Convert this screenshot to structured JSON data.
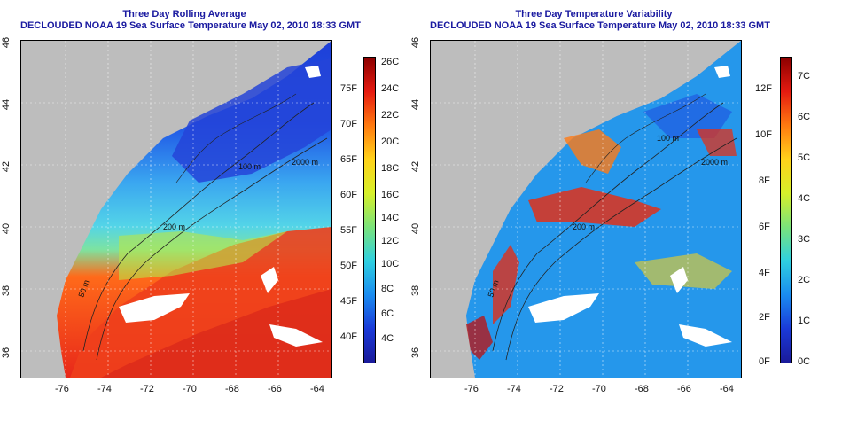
{
  "left_panel": {
    "title_line1": "Three Day Rolling Average",
    "title_line2": "DECLOUDED NOAA 19 Sea Surface Temperature May 02, 2010 18:33 GMT",
    "lon_ticks": [
      "-76",
      "-74",
      "-72",
      "-70",
      "-68",
      "-66",
      "-64"
    ],
    "lat_ticks": [
      "36",
      "38",
      "40",
      "42",
      "44",
      "46"
    ],
    "contours": [
      "2000 m",
      "200 m",
      "100 m",
      "50 m",
      "200 m",
      "200 m"
    ],
    "colorbar": {
      "celsius": [
        "26C",
        "24C",
        "22C",
        "20C",
        "18C",
        "16C",
        "14C",
        "12C",
        "10C",
        "8C",
        "6C",
        "4C"
      ],
      "fahrenheit": [
        "75F",
        "70F",
        "65F",
        "60F",
        "55F",
        "50F",
        "45F",
        "40F"
      ]
    }
  },
  "right_panel": {
    "title_line1": "Three Day Temperature Variability",
    "title_line2": "DECLOUDED NOAA 19 Sea Surface Temperature May 02, 2010 18:33 GMT",
    "lon_ticks": [
      "-76",
      "-74",
      "-72",
      "-70",
      "-68",
      "-66",
      "-64"
    ],
    "lat_ticks": [
      "36",
      "38",
      "40",
      "42",
      "44",
      "46"
    ],
    "contours": [
      "2000 m",
      "100 m",
      "200 m",
      "200 m",
      "50 m",
      "200 m"
    ],
    "colorbar": {
      "celsius": [
        "7C",
        "6C",
        "5C",
        "4C",
        "3C",
        "2C",
        "1C",
        "0C"
      ],
      "fahrenheit": [
        "12F",
        "10F",
        "8F",
        "6F",
        "4F",
        "2F",
        "0F"
      ]
    }
  },
  "colors": {
    "land": "#bdbdbd",
    "title": "#1a1aa0",
    "cloud_mask": "#ffffff"
  }
}
